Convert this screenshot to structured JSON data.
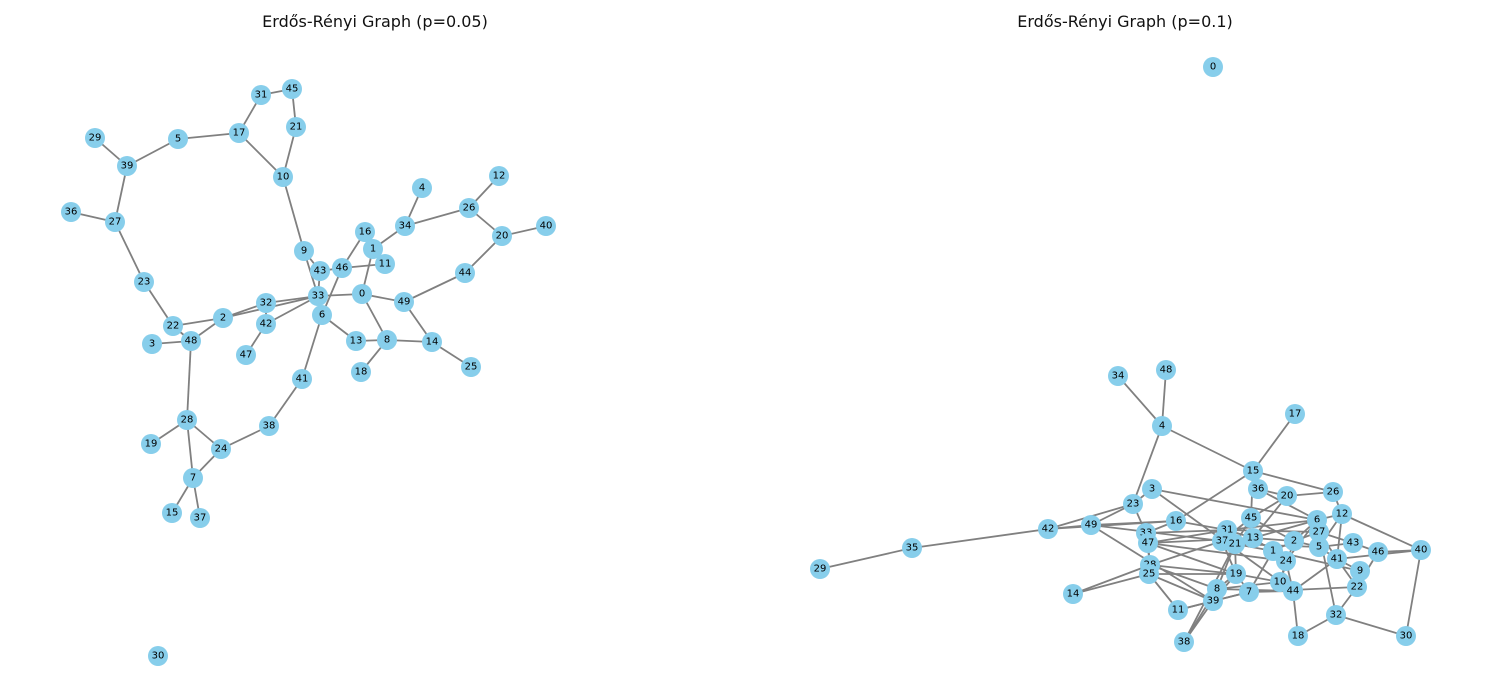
{
  "graphs": [
    {
      "title": "Erdős-Rényi Graph (p=0.05)",
      "nodes": [
        {
          "id": "45"
        },
        {
          "id": "31"
        },
        {
          "id": "29"
        },
        {
          "id": "5"
        },
        {
          "id": "17"
        },
        {
          "id": "21"
        },
        {
          "id": "39"
        },
        {
          "id": "10"
        },
        {
          "id": "4"
        },
        {
          "id": "12"
        },
        {
          "id": "36"
        },
        {
          "id": "27"
        },
        {
          "id": "26"
        },
        {
          "id": "34"
        },
        {
          "id": "40"
        },
        {
          "id": "20"
        },
        {
          "id": "16"
        },
        {
          "id": "9"
        },
        {
          "id": "1"
        },
        {
          "id": "11"
        },
        {
          "id": "46"
        },
        {
          "id": "43"
        },
        {
          "id": "44"
        },
        {
          "id": "23"
        },
        {
          "id": "33"
        },
        {
          "id": "0"
        },
        {
          "id": "49"
        },
        {
          "id": "32"
        },
        {
          "id": "2"
        },
        {
          "id": "42"
        },
        {
          "id": "6"
        },
        {
          "id": "22"
        },
        {
          "id": "3"
        },
        {
          "id": "48"
        },
        {
          "id": "13"
        },
        {
          "id": "8"
        },
        {
          "id": "14"
        },
        {
          "id": "47"
        },
        {
          "id": "25"
        },
        {
          "id": "18"
        },
        {
          "id": "41"
        },
        {
          "id": "28"
        },
        {
          "id": "38"
        },
        {
          "id": "19"
        },
        {
          "id": "24"
        },
        {
          "id": "7"
        },
        {
          "id": "15"
        },
        {
          "id": "37"
        },
        {
          "id": "30"
        }
      ],
      "edges": [
        [
          "31",
          "45"
        ],
        [
          "45",
          "21"
        ],
        [
          "31",
          "17"
        ],
        [
          "17",
          "5"
        ],
        [
          "5",
          "39"
        ],
        [
          "29",
          "39"
        ],
        [
          "39",
          "27"
        ],
        [
          "36",
          "27"
        ],
        [
          "27",
          "23"
        ],
        [
          "23",
          "22"
        ],
        [
          "17",
          "10"
        ],
        [
          "21",
          "10"
        ],
        [
          "10",
          "9"
        ],
        [
          "9",
          "43"
        ],
        [
          "9",
          "33"
        ],
        [
          "4",
          "34"
        ],
        [
          "34",
          "1"
        ],
        [
          "26",
          "34"
        ],
        [
          "26",
          "12"
        ],
        [
          "26",
          "20"
        ],
        [
          "20",
          "40"
        ],
        [
          "20",
          "44"
        ],
        [
          "44",
          "49"
        ],
        [
          "49",
          "14"
        ],
        [
          "14",
          "25"
        ],
        [
          "14",
          "8"
        ],
        [
          "8",
          "0"
        ],
        [
          "8",
          "13"
        ],
        [
          "8",
          "18"
        ],
        [
          "13",
          "6"
        ],
        [
          "0",
          "33"
        ],
        [
          "0",
          "49"
        ],
        [
          "0",
          "1"
        ],
        [
          "1",
          "16"
        ],
        [
          "1",
          "11"
        ],
        [
          "46",
          "11"
        ],
        [
          "46",
          "16"
        ],
        [
          "46",
          "43"
        ],
        [
          "46",
          "6"
        ],
        [
          "43",
          "33"
        ],
        [
          "33",
          "32"
        ],
        [
          "33",
          "42"
        ],
        [
          "33",
          "2"
        ],
        [
          "32",
          "2"
        ],
        [
          "32",
          "42"
        ],
        [
          "42",
          "47"
        ],
        [
          "2",
          "22"
        ],
        [
          "2",
          "48"
        ],
        [
          "22",
          "48"
        ],
        [
          "3",
          "48"
        ],
        [
          "48",
          "28"
        ],
        [
          "28",
          "19"
        ],
        [
          "28",
          "24"
        ],
        [
          "28",
          "7"
        ],
        [
          "24",
          "7"
        ],
        [
          "24",
          "38"
        ],
        [
          "38",
          "41"
        ],
        [
          "41",
          "6"
        ],
        [
          "7",
          "15"
        ],
        [
          "7",
          "37"
        ]
      ]
    },
    {
      "title": "Erdős-Rényi Graph (p=0.1)",
      "nodes": [
        {
          "id": "0"
        },
        {
          "id": "34"
        },
        {
          "id": "48"
        },
        {
          "id": "17"
        },
        {
          "id": "4"
        },
        {
          "id": "15"
        },
        {
          "id": "36"
        },
        {
          "id": "3"
        },
        {
          "id": "20"
        },
        {
          "id": "26"
        },
        {
          "id": "23"
        },
        {
          "id": "45"
        },
        {
          "id": "12"
        },
        {
          "id": "6"
        },
        {
          "id": "42"
        },
        {
          "id": "49"
        },
        {
          "id": "16"
        },
        {
          "id": "31"
        },
        {
          "id": "27"
        },
        {
          "id": "33"
        },
        {
          "id": "13"
        },
        {
          "id": "43"
        },
        {
          "id": "37"
        },
        {
          "id": "21"
        },
        {
          "id": "2"
        },
        {
          "id": "5"
        },
        {
          "id": "47"
        },
        {
          "id": "1"
        },
        {
          "id": "46"
        },
        {
          "id": "40"
        },
        {
          "id": "35"
        },
        {
          "id": "41"
        },
        {
          "id": "24"
        },
        {
          "id": "29"
        },
        {
          "id": "28"
        },
        {
          "id": "9"
        },
        {
          "id": "19"
        },
        {
          "id": "25"
        },
        {
          "id": "10"
        },
        {
          "id": "22"
        },
        {
          "id": "8"
        },
        {
          "id": "44"
        },
        {
          "id": "7"
        },
        {
          "id": "14"
        },
        {
          "id": "39"
        },
        {
          "id": "11"
        },
        {
          "id": "32"
        },
        {
          "id": "18"
        },
        {
          "id": "30"
        },
        {
          "id": "38"
        }
      ],
      "edges": [
        [
          "34",
          "4"
        ],
        [
          "48",
          "4"
        ],
        [
          "4",
          "23"
        ],
        [
          "4",
          "15"
        ],
        [
          "17",
          "15"
        ],
        [
          "15",
          "16"
        ],
        [
          "15",
          "36"
        ],
        [
          "15",
          "26"
        ],
        [
          "15",
          "45"
        ],
        [
          "36",
          "20"
        ],
        [
          "36",
          "6"
        ],
        [
          "20",
          "26"
        ],
        [
          "20",
          "13"
        ],
        [
          "20",
          "45"
        ],
        [
          "26",
          "12"
        ],
        [
          "12",
          "6"
        ],
        [
          "12",
          "5"
        ],
        [
          "12",
          "40"
        ],
        [
          "12",
          "41"
        ],
        [
          "6",
          "2"
        ],
        [
          "6",
          "24"
        ],
        [
          "6",
          "13"
        ],
        [
          "6",
          "31"
        ],
        [
          "43",
          "27"
        ],
        [
          "43",
          "46"
        ],
        [
          "46",
          "40"
        ],
        [
          "46",
          "22"
        ],
        [
          "40",
          "41"
        ],
        [
          "40",
          "30"
        ],
        [
          "3",
          "23"
        ],
        [
          "3",
          "6"
        ],
        [
          "3",
          "44"
        ],
        [
          "23",
          "33"
        ],
        [
          "23",
          "49"
        ],
        [
          "23",
          "42"
        ],
        [
          "42",
          "49"
        ],
        [
          "42",
          "16"
        ],
        [
          "42",
          "35"
        ],
        [
          "35",
          "29"
        ],
        [
          "49",
          "16"
        ],
        [
          "49",
          "37"
        ],
        [
          "49",
          "39"
        ],
        [
          "16",
          "31"
        ],
        [
          "16",
          "33"
        ],
        [
          "31",
          "13"
        ],
        [
          "31",
          "21"
        ],
        [
          "31",
          "27"
        ],
        [
          "31",
          "47"
        ],
        [
          "45",
          "2"
        ],
        [
          "45",
          "37"
        ],
        [
          "45",
          "21"
        ],
        [
          "13",
          "2"
        ],
        [
          "13",
          "37"
        ],
        [
          "13",
          "1"
        ],
        [
          "37",
          "21"
        ],
        [
          "37",
          "28"
        ],
        [
          "37",
          "19"
        ],
        [
          "21",
          "5"
        ],
        [
          "21",
          "1"
        ],
        [
          "21",
          "19"
        ],
        [
          "2",
          "27"
        ],
        [
          "2",
          "5"
        ],
        [
          "2",
          "1"
        ],
        [
          "2",
          "10"
        ],
        [
          "27",
          "5"
        ],
        [
          "27",
          "41"
        ],
        [
          "5",
          "41"
        ],
        [
          "5",
          "43"
        ],
        [
          "1",
          "24"
        ],
        [
          "1",
          "9"
        ],
        [
          "24",
          "10"
        ],
        [
          "24",
          "44"
        ],
        [
          "41",
          "9"
        ],
        [
          "41",
          "22"
        ],
        [
          "41",
          "44"
        ],
        [
          "10",
          "44"
        ],
        [
          "10",
          "19"
        ],
        [
          "9",
          "22"
        ],
        [
          "22",
          "32"
        ],
        [
          "22",
          "7"
        ],
        [
          "32",
          "18"
        ],
        [
          "32",
          "30"
        ],
        [
          "32",
          "27"
        ],
        [
          "44",
          "18"
        ],
        [
          "44",
          "7"
        ],
        [
          "44",
          "8"
        ],
        [
          "19",
          "8"
        ],
        [
          "19",
          "39"
        ],
        [
          "19",
          "7"
        ],
        [
          "19",
          "47"
        ],
        [
          "8",
          "39"
        ],
        [
          "8",
          "28"
        ],
        [
          "8",
          "21"
        ],
        [
          "39",
          "11"
        ],
        [
          "39",
          "38"
        ],
        [
          "39",
          "25"
        ],
        [
          "39",
          "7"
        ],
        [
          "11",
          "25"
        ],
        [
          "11",
          "7"
        ],
        [
          "38",
          "8"
        ],
        [
          "38",
          "21"
        ],
        [
          "28",
          "33"
        ],
        [
          "28",
          "47"
        ],
        [
          "28",
          "25"
        ],
        [
          "25",
          "14"
        ],
        [
          "14",
          "28"
        ],
        [
          "47",
          "33"
        ],
        [
          "47",
          "13"
        ],
        [
          "33",
          "31"
        ],
        [
          "7",
          "1"
        ],
        [
          "10",
          "8"
        ],
        [
          "28",
          "19"
        ],
        [
          "47",
          "24"
        ],
        [
          "25",
          "19"
        ]
      ]
    }
  ]
}
